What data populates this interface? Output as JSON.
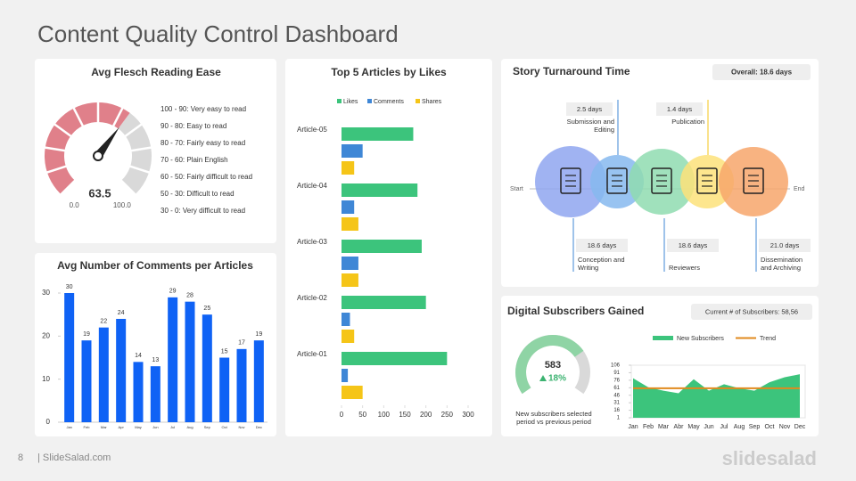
{
  "title": "Content Quality Control Dashboard",
  "page_number": "8",
  "footer": "| SlideSalad.com",
  "brand": "slidesalad",
  "chart_data": [
    {
      "type": "gauge",
      "title": "Avg Flesch Reading Ease",
      "value": 63.5,
      "ticks": [
        {
          "value": 0,
          "label": "0.0"
        },
        {
          "value": 100,
          "label": "100.0"
        }
      ],
      "color": "#e0808a",
      "track_color": "#d9d9d9",
      "legend_items": [
        "100 - 90: Very easy to read",
        "90 - 80: Easy to read",
        "80 - 70: Fairly easy to read",
        "70 - 60: Plain English",
        "60 - 50: Fairly difficult to read",
        "50 - 30: Difficult to read",
        "30 - 0: Very difficult to read"
      ]
    },
    {
      "type": "bar",
      "title": "Avg Number of Comments per Articles",
      "categories": [
        "Jan",
        "Feb",
        "Mar",
        "Apr",
        "May",
        "Jun",
        "Jul",
        "Aug",
        "Sep",
        "Oct",
        "Nov",
        "Dec"
      ],
      "values": [
        30,
        19,
        22,
        24,
        14,
        13,
        29,
        28,
        25,
        15,
        17,
        19
      ],
      "color": "#0f62f5",
      "ylim": [
        0,
        30
      ],
      "yticks": [
        0,
        10,
        20,
        30
      ]
    },
    {
      "type": "barh",
      "title": "Top 5 Articles by Likes",
      "categories": [
        "Article-05",
        "Article-04",
        "Article-03",
        "Article-02",
        "Article-01"
      ],
      "series": [
        {
          "name": "Likes",
          "color": "#3cc47c",
          "values": [
            170,
            180,
            190,
            200,
            250
          ]
        },
        {
          "name": "Comments",
          "color": "#3f87d6",
          "values": [
            50,
            30,
            40,
            20,
            15
          ]
        },
        {
          "name": "Shares",
          "color": "#f5c518",
          "values": [
            30,
            40,
            40,
            30,
            50
          ]
        }
      ],
      "xlim": [
        0,
        300
      ],
      "xticks": [
        0,
        50,
        100,
        150,
        200,
        250,
        300
      ]
    },
    {
      "type": "area",
      "categories": [
        "Jan",
        "Feb",
        "Mar",
        "Abr",
        "May",
        "Jun",
        "Jul",
        "Aug",
        "Sep",
        "Oct",
        "Nov",
        "Dec"
      ],
      "series": [
        {
          "name": "New Subscribers",
          "color": "#3cc47c",
          "style": "area",
          "values": [
            80,
            62,
            55,
            50,
            78,
            55,
            68,
            60,
            55,
            72,
            82,
            88
          ]
        },
        {
          "name": "Trend",
          "color": "#e08a1e",
          "style": "line",
          "values": [
            60,
            60,
            60,
            60,
            60,
            60,
            60,
            60,
            60,
            60,
            60,
            60
          ]
        }
      ],
      "ylim": [
        1,
        106
      ],
      "yticks": [
        1,
        16,
        31,
        46,
        61,
        76,
        91,
        106
      ]
    }
  ],
  "turnaround": {
    "title": "Story Turnaround Time",
    "overall": "Overall: 18.6 days",
    "start": "Start",
    "end": "End",
    "stages": [
      {
        "days": "18.6 days",
        "label": [
          "Conception and",
          "Writing"
        ],
        "color": "#8fa6f0"
      },
      {
        "days": "2.5 days",
        "label": [
          "Submission and",
          "Editing"
        ],
        "color": "#86b8ee"
      },
      {
        "days": "18.6 days",
        "label": [
          "Reviewers"
        ],
        "color": "#8fdcb0"
      },
      {
        "days": "1.4 days",
        "label": [
          "Publication"
        ],
        "color": "#fde27a"
      },
      {
        "days": "21.0 days",
        "label": [
          "Dissemination",
          "and Archiving"
        ],
        "color": "#f7a66b"
      }
    ]
  },
  "subscribers": {
    "title": "Digital Subscribers Gained",
    "current": "Current # of Subscribers: 58,56",
    "value": 583,
    "change": "18%",
    "note": [
      "New subscribers selected",
      "period vs previous period"
    ]
  }
}
